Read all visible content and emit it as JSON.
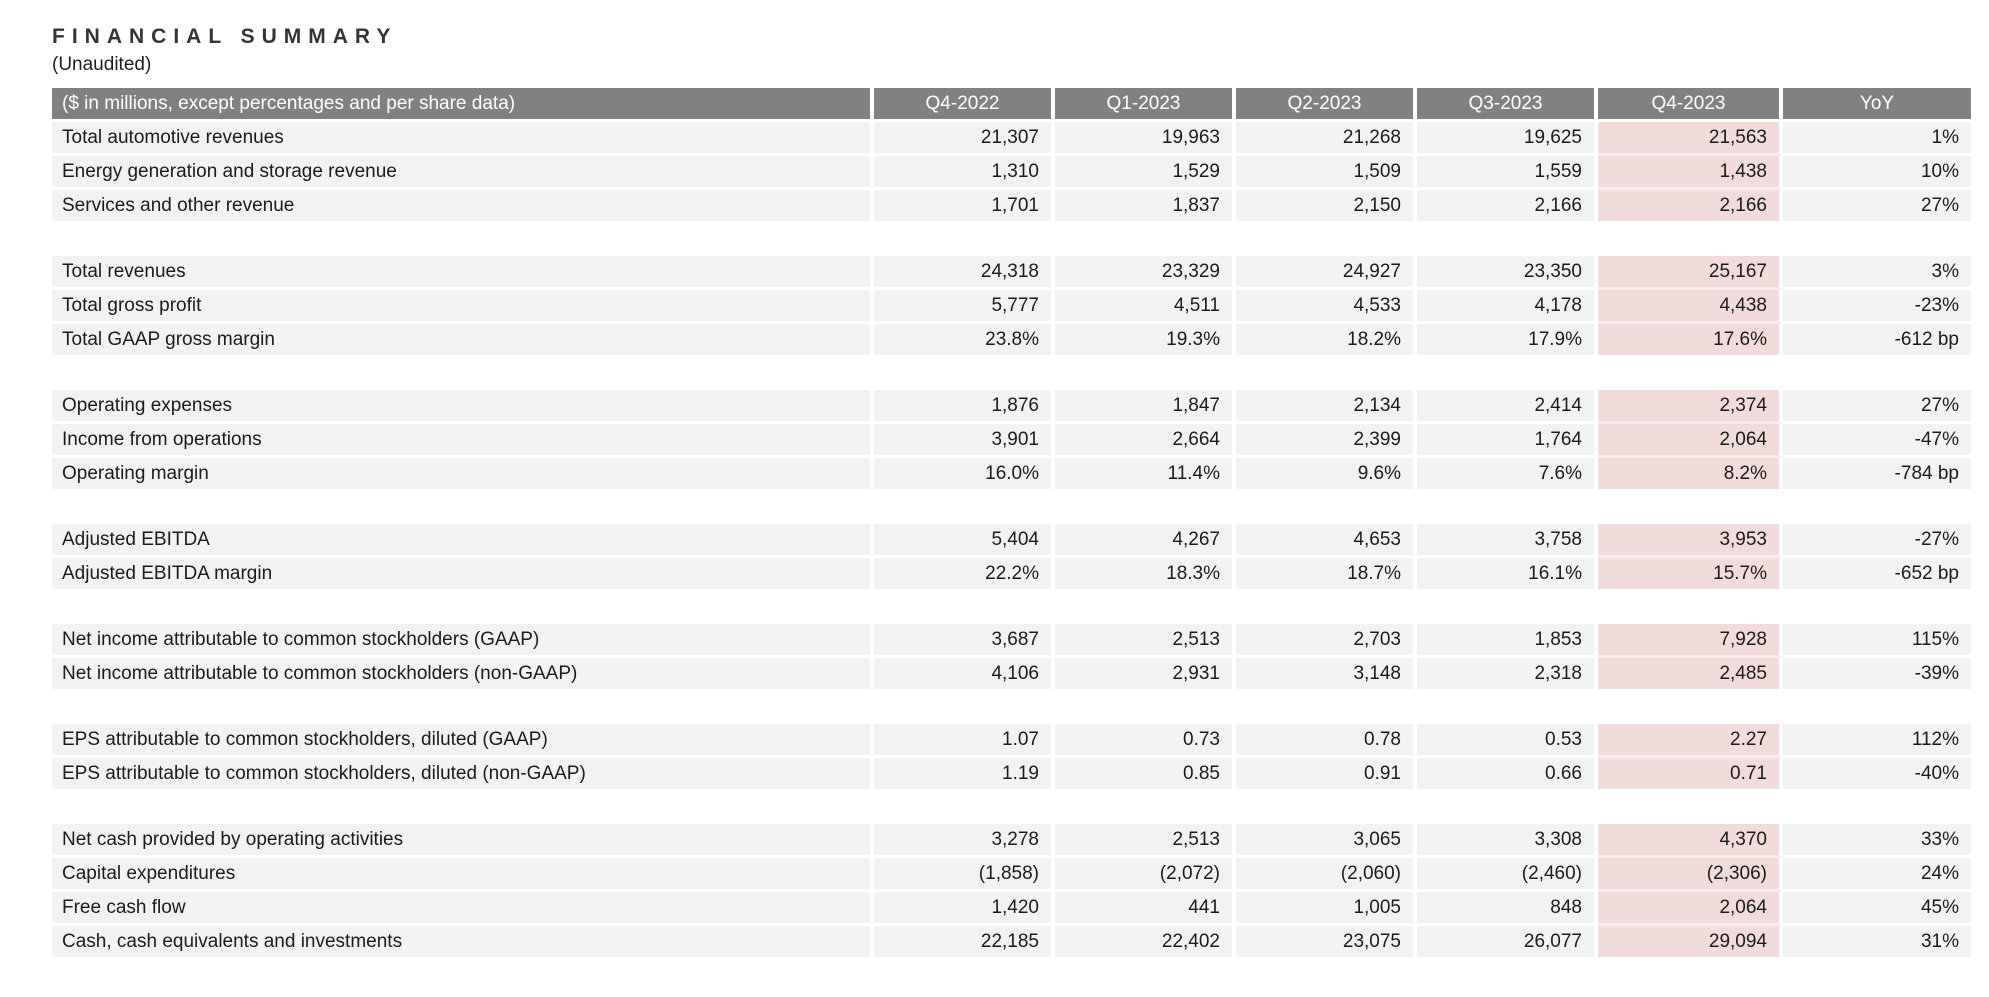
{
  "title": "FINANCIAL SUMMARY",
  "subtitle": "(Unaudited)",
  "colors": {
    "header_bg": "#818181",
    "header_text": "#ffffff",
    "row_bg": "#f2f2f2",
    "highlight_bg": "#f2dbdb",
    "body_text": "#1b1b1b"
  },
  "table": {
    "header": [
      "($ in millions, except percentages and per share data)",
      "Q4-2022",
      "Q1-2023",
      "Q2-2023",
      "Q3-2023",
      "Q4-2023",
      "YoY"
    ],
    "highlight_column": "Q4-2023",
    "groups": [
      {
        "rows": [
          {
            "label": "Total automotive revenues",
            "values": [
              "21,307",
              "19,963",
              "21,268",
              "19,625",
              "21,563",
              "1%"
            ]
          },
          {
            "label": "Energy generation and storage revenue",
            "values": [
              "1,310",
              "1,529",
              "1,509",
              "1,559",
              "1,438",
              "10%"
            ]
          },
          {
            "label": "Services and other revenue",
            "values": [
              "1,701",
              "1,837",
              "2,150",
              "2,166",
              "2,166",
              "27%"
            ]
          }
        ]
      },
      {
        "rows": [
          {
            "label": "Total revenues",
            "values": [
              "24,318",
              "23,329",
              "24,927",
              "23,350",
              "25,167",
              "3%"
            ]
          },
          {
            "label": "Total gross profit",
            "values": [
              "5,777",
              "4,511",
              "4,533",
              "4,178",
              "4,438",
              "-23%"
            ]
          },
          {
            "label": "Total GAAP gross margin",
            "values": [
              "23.8%",
              "19.3%",
              "18.2%",
              "17.9%",
              "17.6%",
              "-612 bp"
            ]
          }
        ]
      },
      {
        "rows": [
          {
            "label": "Operating expenses",
            "values": [
              "1,876",
              "1,847",
              "2,134",
              "2,414",
              "2,374",
              "27%"
            ]
          },
          {
            "label": "Income from operations",
            "values": [
              "3,901",
              "2,664",
              "2,399",
              "1,764",
              "2,064",
              "-47%"
            ]
          },
          {
            "label": "Operating margin",
            "values": [
              "16.0%",
              "11.4%",
              "9.6%",
              "7.6%",
              "8.2%",
              "-784 bp"
            ]
          }
        ]
      },
      {
        "rows": [
          {
            "label": "Adjusted EBITDA",
            "values": [
              "5,404",
              "4,267",
              "4,653",
              "3,758",
              "3,953",
              "-27%"
            ]
          },
          {
            "label": "Adjusted EBITDA margin",
            "values": [
              "22.2%",
              "18.3%",
              "18.7%",
              "16.1%",
              "15.7%",
              "-652 bp"
            ]
          }
        ]
      },
      {
        "rows": [
          {
            "label": "Net income attributable to common stockholders (GAAP)",
            "values": [
              "3,687",
              "2,513",
              "2,703",
              "1,853",
              "7,928",
              "115%"
            ]
          },
          {
            "label": "Net income attributable to common stockholders (non-GAAP)",
            "values": [
              "4,106",
              "2,931",
              "3,148",
              "2,318",
              "2,485",
              "-39%"
            ]
          }
        ]
      },
      {
        "rows": [
          {
            "label": "EPS attributable to common stockholders, diluted (GAAP)",
            "values": [
              "1.07",
              "0.73",
              "0.78",
              "0.53",
              "2.27",
              "112%"
            ]
          },
          {
            "label": "EPS attributable to common stockholders, diluted (non-GAAP)",
            "values": [
              "1.19",
              "0.85",
              "0.91",
              "0.66",
              "0.71",
              "-40%"
            ]
          }
        ]
      },
      {
        "rows": [
          {
            "label": "Net cash provided by operating activities",
            "values": [
              "3,278",
              "2,513",
              "3,065",
              "3,308",
              "4,370",
              "33%"
            ]
          },
          {
            "label": "Capital expenditures",
            "values": [
              "(1,858)",
              "(2,072)",
              "(2,060)",
              "(2,460)",
              "(2,306)",
              "24%"
            ]
          },
          {
            "label": "Free cash flow",
            "values": [
              "1,420",
              "441",
              "1,005",
              "848",
              "2,064",
              "45%"
            ]
          },
          {
            "label": "Cash, cash equivalents and investments",
            "values": [
              "22,185",
              "22,402",
              "23,075",
              "26,077",
              "29,094",
              "31%"
            ]
          }
        ]
      }
    ]
  }
}
